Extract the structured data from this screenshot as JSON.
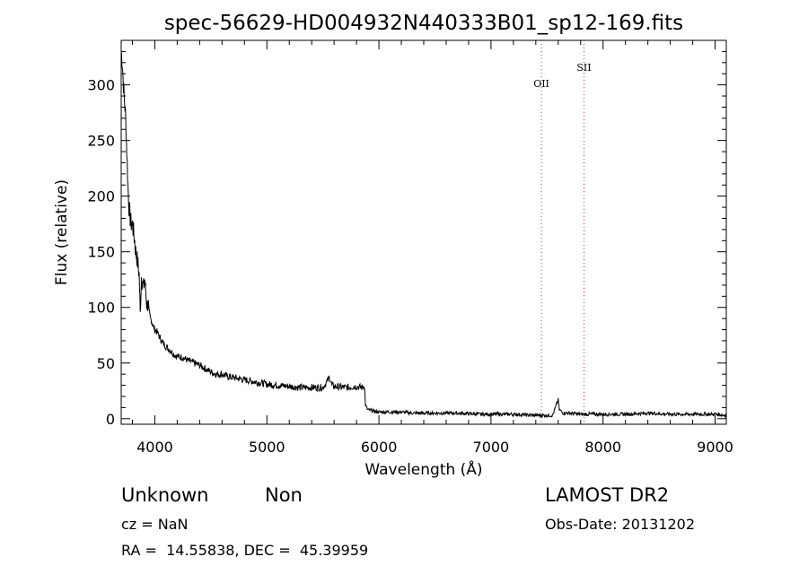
{
  "chart_data": {
    "type": "line",
    "title": "spec-56629-HD004932N440333B01_sp12-169.fits",
    "xlabel": "Wavelength (Å)",
    "ylabel": "Flux (relative)",
    "xlim": [
      3700,
      9100
    ],
    "ylim": [
      -5,
      340
    ],
    "xticks": [
      4000,
      5000,
      6000,
      7000,
      8000,
      9000
    ],
    "yticks": [
      0,
      50,
      100,
      150,
      200,
      250,
      300
    ],
    "grid": false,
    "series": [
      {
        "x": [
          3700,
          3710,
          3720,
          3730,
          3740,
          3750,
          3760,
          3770,
          3780,
          3790,
          3800,
          3810,
          3820,
          3830,
          3840,
          3850,
          3860,
          3870,
          3880,
          3890,
          3900,
          3910,
          3920,
          3930,
          3940,
          3950,
          3960,
          3970,
          3980,
          3990,
          4000,
          4020,
          4040,
          4060,
          4080,
          4100,
          4120,
          4140,
          4160,
          4180,
          4200,
          4250,
          4300,
          4350,
          4400,
          4450,
          4500,
          4550,
          4600,
          4650,
          4700,
          4800,
          4900,
          5000,
          5100,
          5200,
          5300,
          5400,
          5500,
          5560,
          5580,
          5600,
          5700,
          5800,
          5850,
          5870,
          5880,
          5900,
          5950,
          6000,
          6100,
          6200,
          6300,
          6500,
          6700,
          6900,
          7000,
          7200,
          7400,
          7550,
          7600,
          7610,
          7650,
          7700,
          7800,
          8000,
          8200,
          8400,
          8600,
          8800,
          9000,
          9100
        ],
        "values": [
          330,
          320,
          300,
          285,
          270,
          240,
          210,
          190,
          180,
          175,
          175,
          168,
          160,
          150,
          145,
          138,
          130,
          95,
          128,
          122,
          118,
          125,
          112,
          100,
          105,
          95,
          90,
          88,
          85,
          82,
          80,
          78,
          74,
          70,
          67,
          65,
          63,
          61,
          59,
          57,
          56,
          55,
          52,
          50,
          48,
          45,
          42,
          40,
          40,
          38,
          37,
          35,
          33,
          31,
          30,
          29,
          28,
          28,
          28,
          37,
          30,
          29,
          28,
          29,
          28,
          30,
          12,
          8,
          7,
          6,
          6,
          6,
          5,
          5,
          5,
          4,
          4,
          4,
          3,
          3,
          17,
          8,
          5,
          5,
          4,
          4,
          4,
          5,
          4,
          4,
          4,
          3
        ]
      }
    ],
    "lines": [
      {
        "x": 7450,
        "label": "OII"
      },
      {
        "x": 7830,
        "label": "SII"
      }
    ]
  },
  "info": {
    "object_class": "Unknown",
    "subclass": "Non",
    "survey": "LAMOST DR2",
    "cz": "cz = NaN",
    "obs_date": "Obs-Date: 20131202",
    "coords": "RA =  14.55838, DEC =  45.39959"
  }
}
